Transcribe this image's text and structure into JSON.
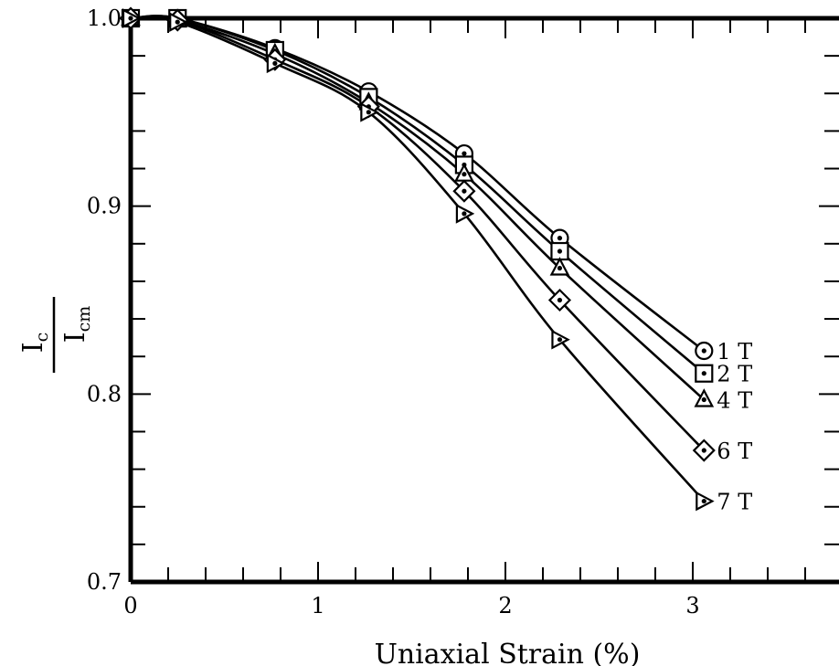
{
  "chart_data": {
    "type": "line",
    "xlabel": "Uniaxial Strain (%)",
    "ylabel_main": "I",
    "ylabel_main_sub": "c",
    "ylabel_denominator": "I",
    "ylabel_denominator_sub": "cm",
    "xlim": [
      0,
      3.75
    ],
    "ylim": [
      0.7,
      1.0
    ],
    "xticks": [
      0,
      1,
      2,
      3
    ],
    "xtick_labels": [
      "0",
      "1",
      "2",
      "3"
    ],
    "yticks": [
      0.7,
      0.8,
      0.9,
      1.0
    ],
    "ytick_labels": [
      "0.7",
      "0.8",
      "0.9",
      "1.0"
    ],
    "grid": false,
    "series": [
      {
        "name": "1 T",
        "marker": "circle",
        "x": [
          0,
          0.25,
          0.77,
          1.27,
          1.78,
          2.29,
          3.06
        ],
        "y": [
          1.0,
          1.0,
          0.984,
          0.961,
          0.928,
          0.883,
          0.823
        ]
      },
      {
        "name": "2 T",
        "marker": "square",
        "x": [
          0,
          0.25,
          0.77,
          1.27,
          1.78,
          2.29,
          3.06
        ],
        "y": [
          1.0,
          1.0,
          0.983,
          0.958,
          0.922,
          0.876,
          0.811
        ]
      },
      {
        "name": "4 T",
        "marker": "triangle",
        "x": [
          0,
          0.25,
          0.77,
          1.27,
          1.78,
          2.29,
          3.06
        ],
        "y": [
          1.0,
          0.999,
          0.981,
          0.955,
          0.917,
          0.867,
          0.797
        ]
      },
      {
        "name": "6 T",
        "marker": "diamond",
        "x": [
          0,
          0.25,
          0.77,
          1.27,
          1.78,
          2.29,
          3.06
        ],
        "y": [
          1.0,
          0.999,
          0.978,
          0.953,
          0.908,
          0.85,
          0.77
        ]
      },
      {
        "name": "7 T",
        "marker": "triangle-right",
        "x": [
          0,
          0.25,
          0.77,
          1.27,
          1.78,
          2.29,
          3.06
        ],
        "y": [
          1.0,
          0.998,
          0.976,
          0.95,
          0.896,
          0.829,
          0.743
        ]
      }
    ]
  }
}
